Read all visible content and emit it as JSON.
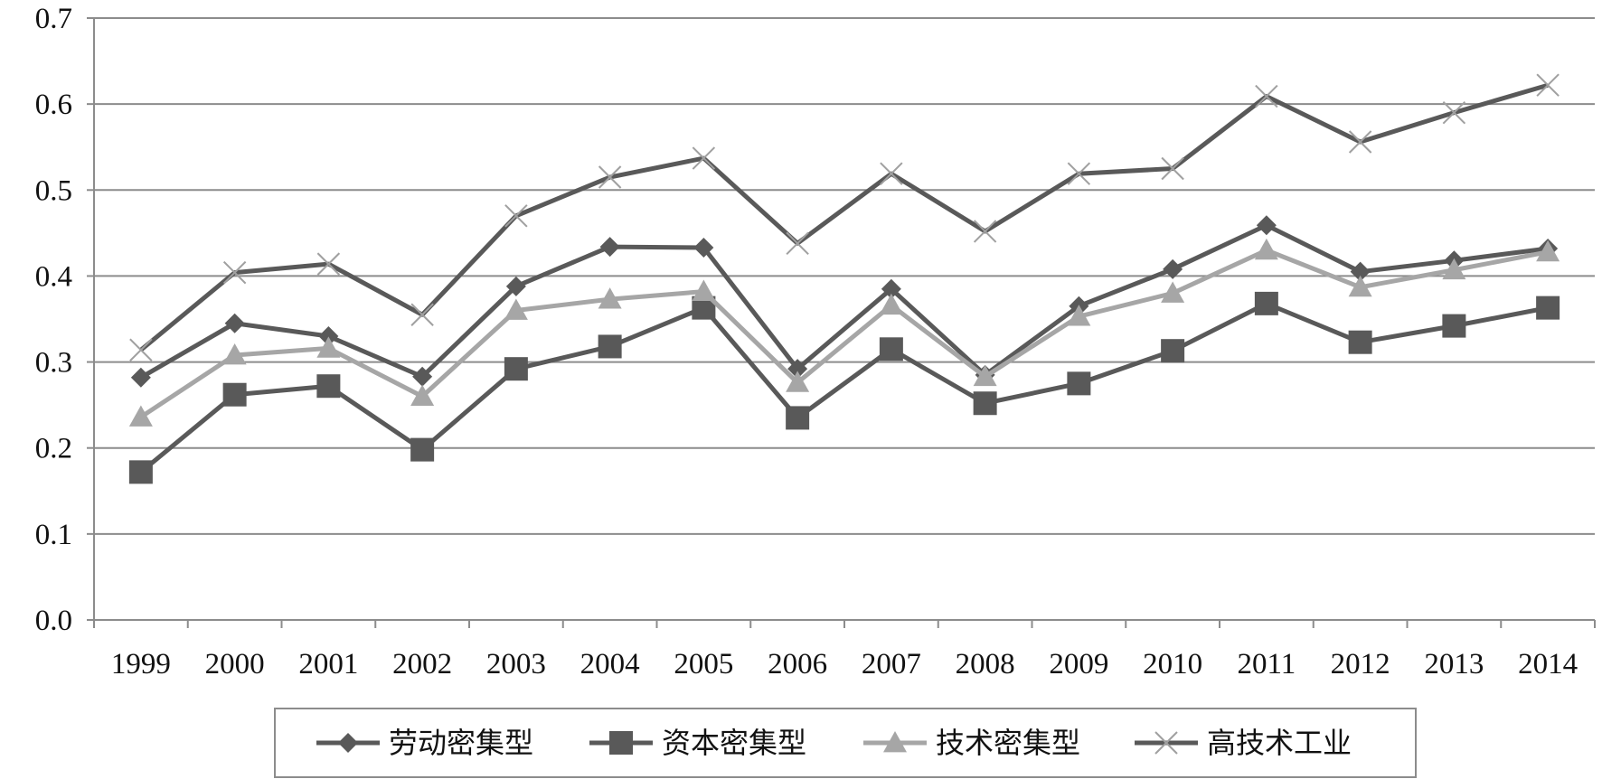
{
  "chart_data": {
    "type": "line",
    "title": "",
    "xlabel": "",
    "ylabel": "",
    "x": [
      "1999",
      "2000",
      "2001",
      "2002",
      "2003",
      "2004",
      "2005",
      "2006",
      "2007",
      "2008",
      "2009",
      "2010",
      "2011",
      "2012",
      "2013",
      "2014"
    ],
    "ylim": [
      0,
      0.7
    ],
    "yticks": [
      "0.0",
      "0.1",
      "0.2",
      "0.3",
      "0.4",
      "0.5",
      "0.6",
      "0.7"
    ],
    "grid": true,
    "legend_position": "bottom",
    "series": [
      {
        "name": "劳动密集型",
        "marker": "diamond",
        "color": "#595959",
        "values": [
          0.282,
          0.345,
          0.33,
          0.283,
          0.388,
          0.434,
          0.433,
          0.292,
          0.385,
          0.285,
          0.365,
          0.408,
          0.459,
          0.405,
          0.418,
          0.432
        ]
      },
      {
        "name": "资本密集型",
        "marker": "square",
        "color": "#595959",
        "values": [
          0.172,
          0.262,
          0.272,
          0.198,
          0.292,
          0.318,
          0.363,
          0.235,
          0.315,
          0.252,
          0.275,
          0.313,
          0.368,
          0.323,
          0.342,
          0.363
        ]
      },
      {
        "name": "技术密集型",
        "marker": "triangle",
        "color": "#a6a6a6",
        "values": [
          0.236,
          0.308,
          0.316,
          0.26,
          0.36,
          0.373,
          0.382,
          0.276,
          0.366,
          0.283,
          0.353,
          0.38,
          0.43,
          0.387,
          0.407,
          0.428
        ]
      },
      {
        "name": "高技术工业",
        "marker": "x",
        "color": "#595959",
        "values": [
          0.314,
          0.404,
          0.414,
          0.355,
          0.47,
          0.515,
          0.537,
          0.438,
          0.519,
          0.452,
          0.519,
          0.525,
          0.609,
          0.556,
          0.59,
          0.622
        ]
      }
    ]
  }
}
